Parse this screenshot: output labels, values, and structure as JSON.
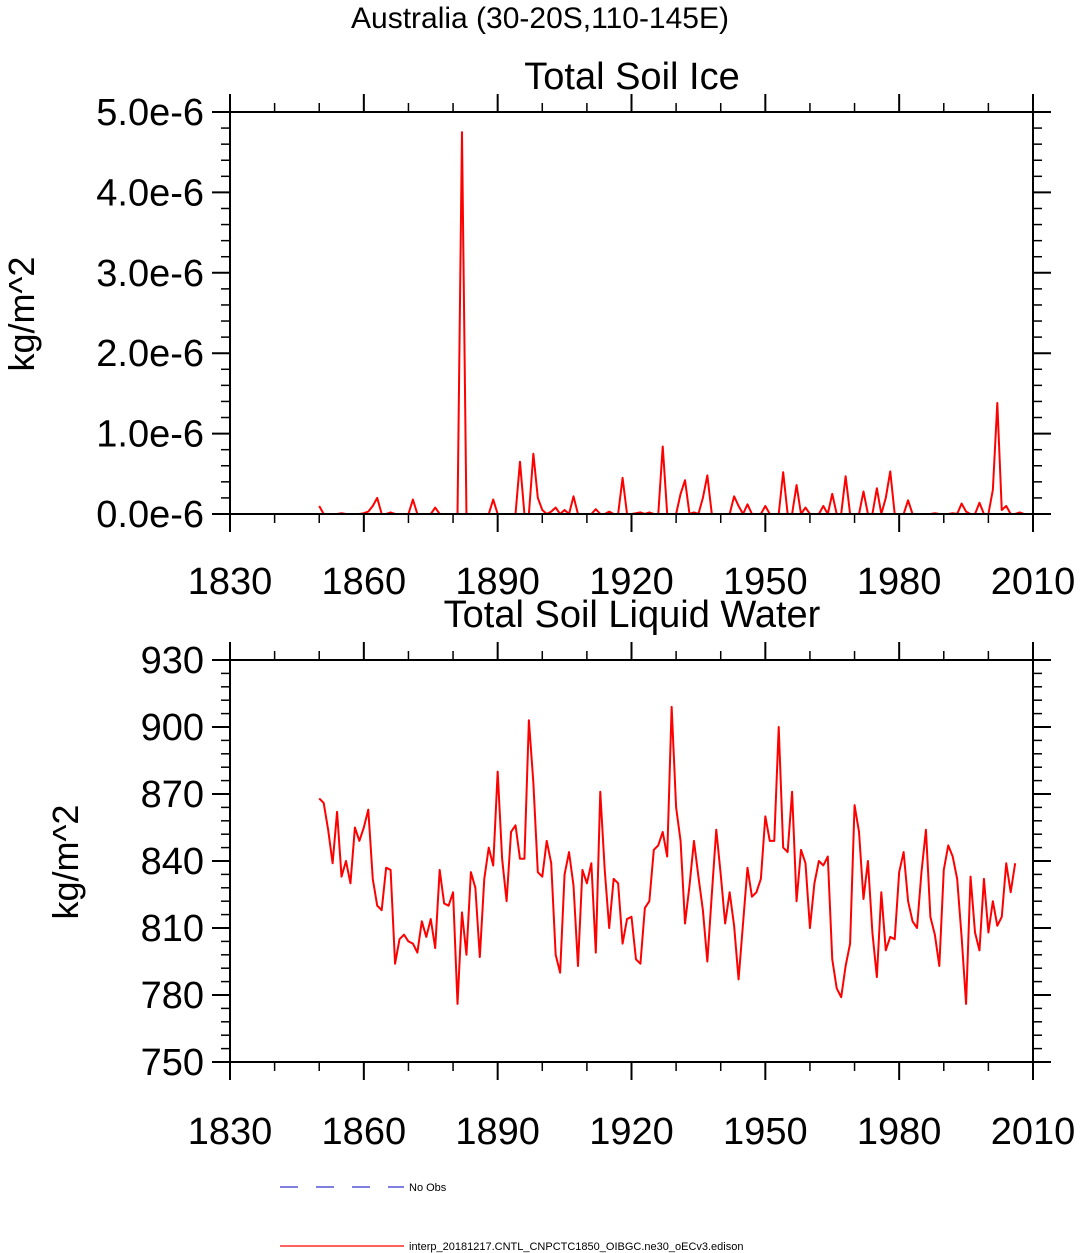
{
  "page": {
    "suptitle": "Australia (30-20S,110-145E)"
  },
  "colors": {
    "series": "#ff0000",
    "obs": "#3333cc",
    "axis": "#000000"
  },
  "legend": {
    "obs_label": "No Obs",
    "model_label": "interp_20181217.CNTL_CNPCTC1850_OIBGC.ne30_oECv3.edison"
  },
  "chart_data": [
    {
      "type": "line",
      "title": "Total Soil Ice",
      "xlabel": "",
      "ylabel": "kg/m^2",
      "xlim": [
        1830,
        2010
      ],
      "ylim": [
        0,
        5e-06
      ],
      "xticks": [
        1830,
        1860,
        1890,
        1920,
        1950,
        1980,
        2010
      ],
      "xtick_labels": [
        "1830",
        "1860",
        "1890",
        "1920",
        "1950",
        "1980",
        "2010"
      ],
      "yticks": [
        0,
        1e-06,
        2e-06,
        3e-06,
        4e-06,
        5e-06
      ],
      "ytick_labels": [
        "0.0e-6",
        "1.0e-6",
        "2.0e-6",
        "3.0e-6",
        "4.0e-6",
        "5.0e-6"
      ],
      "series": [
        {
          "name": "interp_20181217.CNTL_CNPCTC1850_OIBGC.ne30_oECv3.edison",
          "x_start": 1850,
          "x_step": 1,
          "values": [
            1e-07,
            0,
            0,
            0,
            0,
            1e-08,
            0,
            0,
            0,
            0,
            1e-08,
            3e-08,
            1e-07,
            2e-07,
            0,
            0,
            2e-08,
            0,
            0,
            0,
            0,
            1.8e-07,
            0,
            0,
            0,
            0,
            8e-08,
            0,
            0,
            0,
            0,
            0,
            4.75e-06,
            0,
            0,
            0,
            0,
            0,
            0,
            1.8e-07,
            0,
            0,
            0,
            0,
            0,
            6.5e-07,
            0,
            0,
            7.5e-07,
            2e-07,
            5e-08,
            0,
            3e-08,
            8e-08,
            0,
            5e-08,
            0,
            2.2e-07,
            0,
            0,
            0,
            0,
            6e-08,
            0,
            0,
            3e-08,
            0,
            0,
            4.5e-07,
            0,
            0,
            1e-08,
            2e-08,
            0,
            2e-08,
            0,
            0,
            8.4e-07,
            0,
            0,
            0,
            2.5e-07,
            4.2e-07,
            0,
            2e-08,
            0,
            2e-07,
            4.8e-07,
            0,
            0,
            0,
            0,
            0,
            2.2e-07,
            1e-07,
            0,
            1.2e-07,
            0,
            0,
            0,
            1e-07,
            0,
            0,
            0,
            5.2e-07,
            0,
            0,
            3.6e-07,
            0,
            8e-08,
            0,
            0,
            0,
            1e-07,
            0,
            2.5e-07,
            0,
            0,
            4.7e-07,
            0,
            0,
            0,
            2.8e-07,
            0,
            0,
            3.2e-07,
            0,
            2e-07,
            5.3e-07,
            0,
            0,
            0,
            1.7e-07,
            0,
            0,
            0,
            0,
            0,
            1e-08,
            0,
            0,
            0,
            1e-08,
            0,
            1.3e-07,
            3e-08,
            0,
            0,
            1.4e-07,
            0,
            0,
            3e-07,
            1.38e-06,
            5e-08,
            1e-07,
            0,
            0,
            2e-08,
            0
          ]
        }
      ]
    },
    {
      "type": "line",
      "title": "Total Soil Liquid Water",
      "xlabel": "",
      "ylabel": "kg/m^2",
      "xlim": [
        1830,
        2010
      ],
      "ylim": [
        750,
        930
      ],
      "xticks": [
        1830,
        1860,
        1890,
        1920,
        1950,
        1980,
        2010
      ],
      "xtick_labels": [
        "1830",
        "1860",
        "1890",
        "1920",
        "1950",
        "1980",
        "2010"
      ],
      "yticks": [
        750,
        780,
        810,
        840,
        870,
        900,
        930
      ],
      "ytick_labels": [
        "750",
        "780",
        "810",
        "840",
        "870",
        "900",
        "930"
      ],
      "series": [
        {
          "name": "interp_20181217.CNTL_CNPCTC1850_OIBGC.ne30_oECv3.edison",
          "x_start": 1850,
          "x_step": 1,
          "values": [
            868,
            866,
            854,
            839,
            862,
            833,
            840,
            830,
            855,
            849,
            855,
            863,
            832,
            820,
            818,
            837,
            836,
            794,
            805,
            807,
            804,
            803,
            799,
            813,
            806,
            814,
            801,
            836,
            821,
            820,
            826,
            776,
            817,
            798,
            835,
            828,
            797,
            832,
            846,
            838,
            880,
            841,
            822,
            853,
            856,
            841,
            841,
            903,
            875,
            835,
            833,
            849,
            839,
            798,
            790,
            834,
            844,
            829,
            793,
            836,
            830,
            839,
            799,
            871,
            836,
            810,
            832,
            830,
            803,
            814,
            815,
            796,
            794,
            819,
            822,
            845,
            847,
            853,
            842,
            909,
            864,
            849,
            812,
            829,
            849,
            833,
            818,
            795,
            825,
            854,
            834,
            812,
            826,
            811,
            787,
            812,
            837,
            824,
            826,
            832,
            860,
            849,
            849,
            900,
            846,
            844,
            871,
            822,
            845,
            839,
            810,
            830,
            840,
            838,
            842,
            796,
            783,
            779,
            793,
            803,
            865,
            853,
            823,
            840,
            808,
            788,
            826,
            800,
            806,
            805,
            835,
            844,
            822,
            813,
            810,
            835,
            854,
            815,
            807,
            793,
            836,
            847,
            842,
            832,
            806,
            776,
            833,
            808,
            800,
            832,
            808,
            822,
            811,
            815,
            839,
            826,
            839
          ]
        }
      ]
    }
  ]
}
